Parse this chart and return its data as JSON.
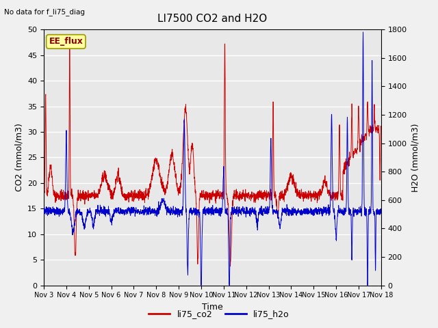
{
  "title": "LI7500 CO2 and H2O",
  "top_left_text": "No data for f_li75_diag",
  "box_label": "EE_flux",
  "xlabel": "Time",
  "ylabel_left": "CO2 (mmol/m3)",
  "ylabel_right": "H2O (mmol/m3)",
  "ylim_left": [
    0,
    50
  ],
  "ylim_right": [
    0,
    1800
  ],
  "co2_color": "#cc0000",
  "h2o_color": "#0000cc",
  "fig_bg_color": "#f0f0f0",
  "plot_bg_color": "#e8e8e8",
  "legend_co2": "li75_co2",
  "legend_h2o": "li75_h2o",
  "xtick_labels": [
    "Nov 3",
    "Nov 4",
    "Nov 5",
    "Nov 6",
    "Nov 7",
    "Nov 8",
    "Nov 9",
    "Nov 10",
    "Nov 11",
    "Nov 12",
    "Nov 13",
    "Nov 14",
    "Nov 15",
    "Nov 16",
    "Nov 17",
    "Nov 18"
  ],
  "num_days": 15,
  "seed": 42
}
